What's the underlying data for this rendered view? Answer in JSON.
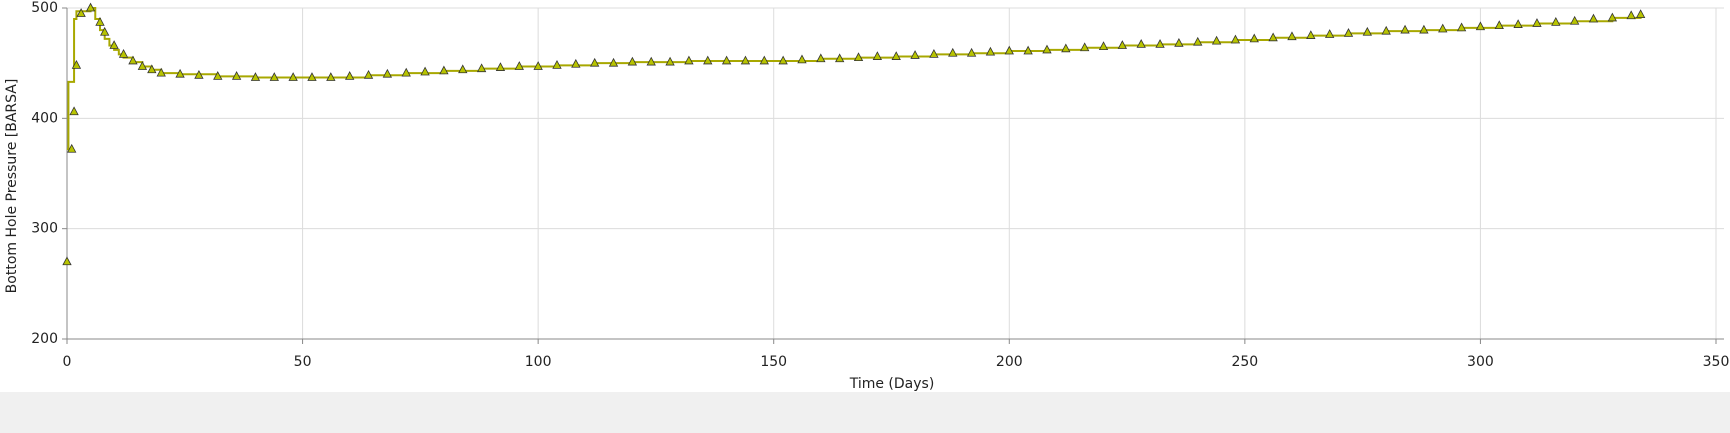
{
  "chart_data": {
    "type": "line",
    "x_label": "Time (Days)",
    "y_label": "Bottom Hole Pressure [BARSA]",
    "xlim": [
      0,
      350
    ],
    "xticks": [
      0,
      50,
      100,
      150,
      200,
      250,
      300,
      350
    ],
    "ylim": [
      200,
      500
    ],
    "yticks": [
      200,
      300,
      400,
      500
    ],
    "grid": true,
    "series": [
      {
        "color": "#a8a800",
        "step": true,
        "x": [
          0,
          0.3,
          1.5,
          2,
          5,
          6,
          7,
          8,
          9,
          10,
          11,
          12,
          14,
          16,
          18,
          20,
          24,
          32,
          40,
          56,
          64,
          72,
          80,
          88,
          96,
          104,
          112,
          120,
          132,
          152,
          160,
          168,
          176,
          184,
          192,
          200,
          208,
          216,
          224,
          232,
          240,
          248,
          256,
          264,
          272,
          280,
          288,
          296,
          304,
          312,
          320,
          328,
          334
        ],
        "values": [
          372,
          433,
          490,
          497,
          500,
          490,
          480,
          472,
          466,
          462,
          458,
          455,
          451,
          447,
          444,
          441,
          440,
          438,
          437,
          437,
          439,
          441,
          443,
          445,
          447,
          448,
          450,
          451,
          452,
          452,
          454,
          455,
          456,
          458,
          459,
          461,
          462,
          464,
          466,
          467,
          469,
          471,
          473,
          475,
          477,
          479,
          480,
          482,
          484,
          486,
          488,
          491,
          494
        ]
      },
      {
        "color": "#b8c400",
        "marker": "triangle",
        "x": [
          0,
          1,
          1.5,
          2,
          3,
          5,
          7,
          8,
          10,
          12,
          14,
          16,
          18,
          20,
          24,
          28,
          32,
          36,
          40,
          44,
          48,
          52,
          56,
          60,
          64,
          68,
          72,
          76,
          80,
          84,
          88,
          92,
          96,
          100,
          104,
          108,
          112,
          116,
          120,
          124,
          128,
          132,
          136,
          140,
          144,
          148,
          152,
          156,
          160,
          164,
          168,
          172,
          176,
          180,
          184,
          188,
          192,
          196,
          200,
          204,
          208,
          212,
          216,
          220,
          224,
          228,
          232,
          236,
          240,
          244,
          248,
          252,
          256,
          260,
          264,
          268,
          272,
          276,
          280,
          284,
          288,
          292,
          296,
          300,
          304,
          308,
          312,
          316,
          320,
          324,
          328,
          332,
          334
        ],
        "values": [
          270,
          372,
          406,
          448,
          495,
          500,
          487,
          478,
          466,
          458,
          452,
          447,
          444,
          441,
          440,
          439,
          438,
          438,
          437,
          437,
          437,
          437,
          437,
          438,
          439,
          440,
          441,
          442,
          443,
          444,
          445,
          446,
          447,
          447,
          448,
          449,
          450,
          450,
          451,
          451,
          451,
          452,
          452,
          452,
          452,
          452,
          452,
          453,
          454,
          454,
          455,
          456,
          456,
          457,
          458,
          459,
          459,
          460,
          461,
          461,
          462,
          463,
          464,
          465,
          466,
          467,
          467,
          468,
          469,
          470,
          471,
          472,
          473,
          474,
          475,
          476,
          477,
          478,
          479,
          480,
          480,
          481,
          482,
          483,
          484,
          485,
          486,
          487,
          488,
          490,
          491,
          493,
          494
        ]
      }
    ]
  }
}
